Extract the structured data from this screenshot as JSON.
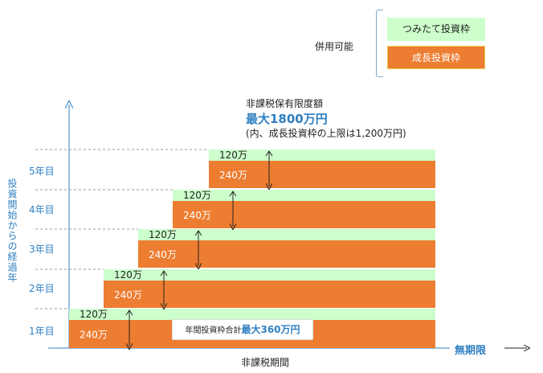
{
  "legend": {
    "title": "併用可能",
    "tsumitate_label": "つみたて投資枠",
    "growth_label": "成長投資枠"
  },
  "annotation": {
    "line1": "非課税保有限度額",
    "line2": "最大1800万円",
    "line3": "(内、成長投資枠の上限は1,200万円)"
  },
  "annual_total": {
    "label": "年間投資枠合計",
    "amount": "最大360万円"
  },
  "axis": {
    "ylabel": "投資開始からの経過年",
    "xlabel": "非課税期間",
    "unlimited": "無期限"
  },
  "colors": {
    "tsumitate": "#ccffcc",
    "growth": "#ed7d31",
    "accent": "#2f7fc1"
  },
  "chart_data": {
    "type": "bar",
    "orientation": "horizontal-staircase",
    "categories": [
      "1年目",
      "2年目",
      "3年目",
      "4年目",
      "5年目"
    ],
    "series": [
      {
        "name": "つみたて投資枠",
        "values": [
          120,
          120,
          120,
          120,
          120
        ],
        "label": "120万"
      },
      {
        "name": "成長投資枠",
        "values": [
          240,
          240,
          240,
          240,
          240
        ],
        "label": "240万"
      }
    ],
    "xlabel": "非課税期間",
    "ylabel": "投資開始からの経過年"
  }
}
